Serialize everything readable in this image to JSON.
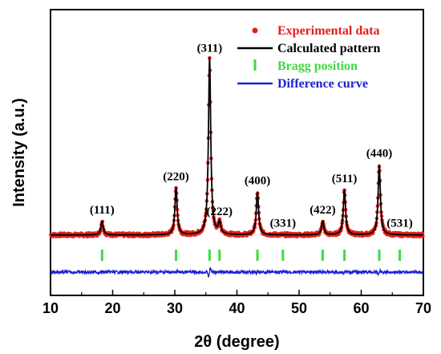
{
  "chart_data": {
    "type": "line",
    "xlabel": "2θ (degree)",
    "ylabel": "Intensity (a.u.)",
    "xlim": [
      10,
      70
    ],
    "x_ticks": [
      "10",
      "20",
      "30",
      "40",
      "50",
      "60",
      "70"
    ],
    "y_ticks_shown": false,
    "colors": {
      "experimental": "#e0201b",
      "calculated": "#000000",
      "bragg": "#3ddc3d",
      "difference": "#1a22d6"
    },
    "legend": [
      {
        "label": "Experimental data",
        "marker": "dot",
        "color": "#e0201b"
      },
      {
        "label": "Calculated pattern",
        "marker": "line",
        "color": "#000000"
      },
      {
        "label": "Bragg position",
        "marker": "tick",
        "color": "#3ddc3d"
      },
      {
        "label": "Difference curve",
        "marker": "line",
        "color": "#1a22d6"
      }
    ],
    "baseline": 0.03,
    "peaks": [
      {
        "label": "(111)",
        "x": 18.3,
        "height": 0.07
      },
      {
        "label": "(220)",
        "x": 30.2,
        "height": 0.24
      },
      {
        "label": "(311)",
        "x": 35.6,
        "height": 0.91
      },
      {
        "label": "(222)",
        "x": 37.2,
        "height": 0.06
      },
      {
        "label": "(400)",
        "x": 43.3,
        "height": 0.22
      },
      {
        "label": "(331)",
        "x": 47.4,
        "height": 0.0
      },
      {
        "label": "(422)",
        "x": 53.8,
        "height": 0.07
      },
      {
        "label": "(511)",
        "x": 57.3,
        "height": 0.23
      },
      {
        "label": "(440)",
        "x": 62.9,
        "height": 0.36
      },
      {
        "label": "(531)",
        "x": 66.2,
        "height": 0.0
      }
    ],
    "bragg_positions": [
      18.3,
      30.2,
      35.6,
      37.2,
      43.3,
      47.4,
      53.8,
      57.3,
      62.9,
      66.2
    ]
  }
}
